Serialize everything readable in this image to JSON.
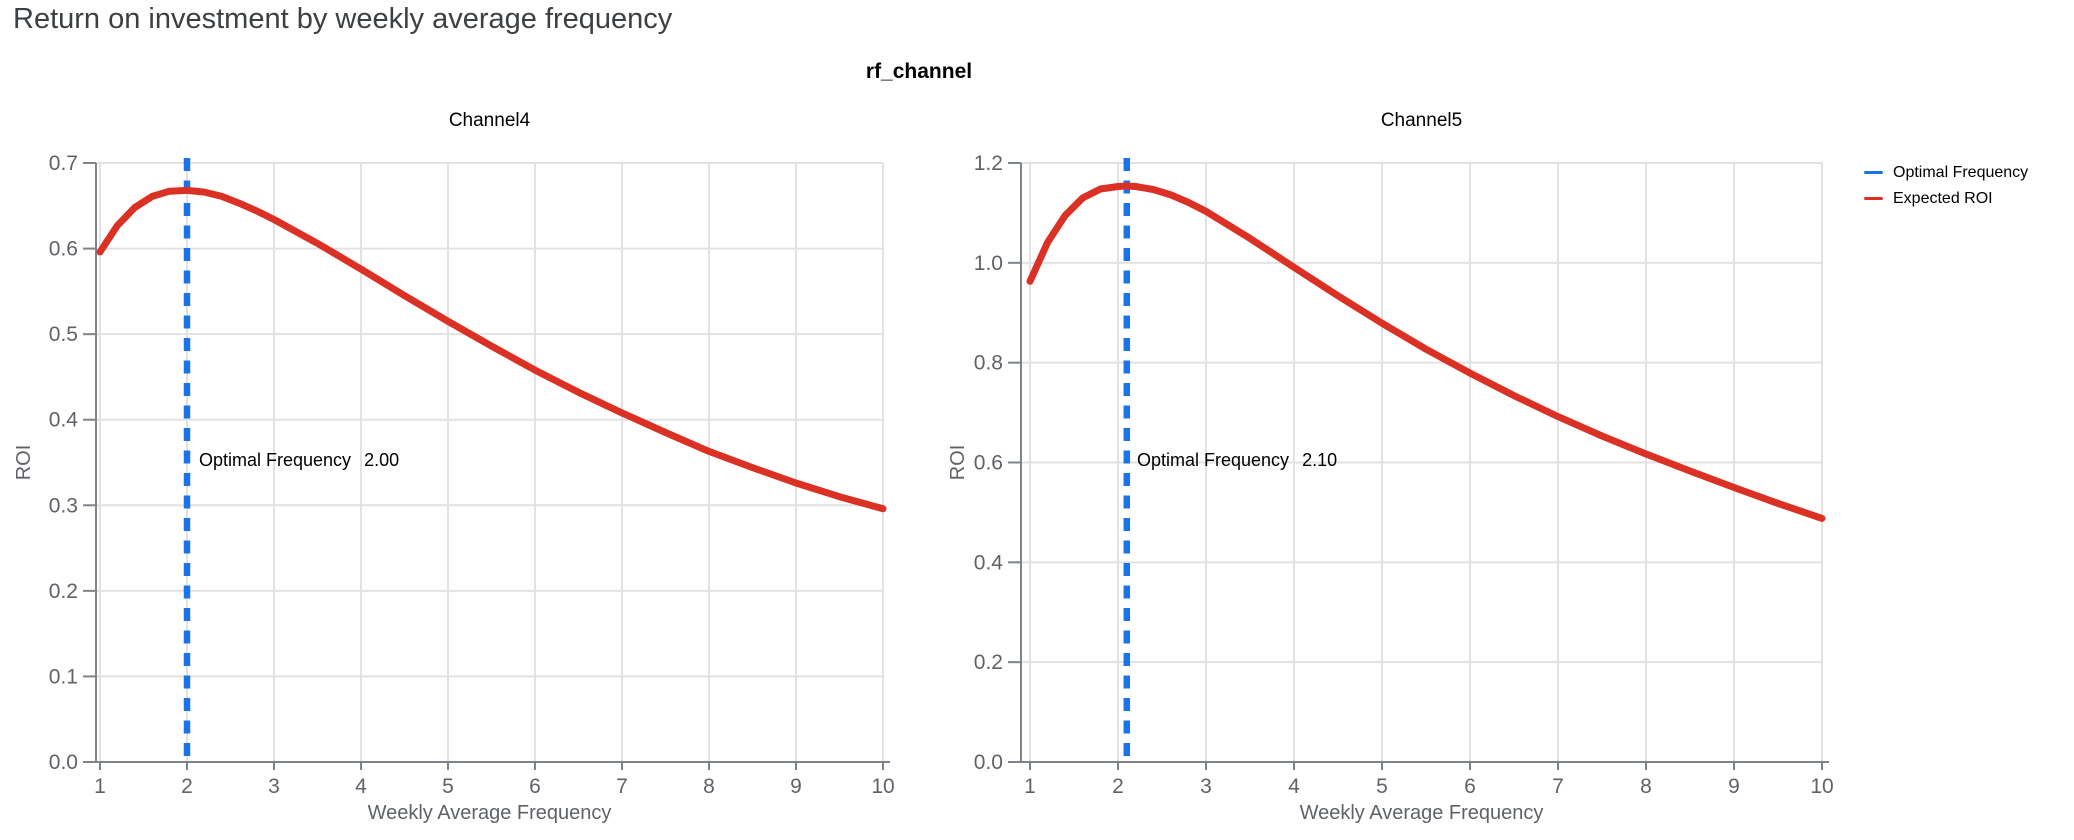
{
  "page": {
    "title": "Return on investment by weekly average frequency"
  },
  "facet": {
    "strip_title": "rf_channel"
  },
  "legend": {
    "items": [
      {
        "label": "Optimal Frequency",
        "color": "#1a73e8"
      },
      {
        "label": "Expected ROI",
        "color": "#db3125"
      }
    ]
  },
  "colors": {
    "roi_curve": "#db3125",
    "optimal_rule": "#1a73e8",
    "grid": "#e2e2e2",
    "axis": "#7e848a",
    "tick_label": "#5f6368",
    "axis_title": "#5f6368",
    "facet_label": "#000000",
    "annotation": "#000000",
    "page_title": "#3c4043"
  },
  "chart_data": [
    {
      "type": "line",
      "title": "Channel4",
      "xlabel": "Weekly Average Frequency",
      "ylabel": "ROI",
      "xlim": [
        1,
        10
      ],
      "ylim": [
        0,
        0.7
      ],
      "xticks": [
        1,
        2,
        3,
        4,
        5,
        6,
        7,
        8,
        9,
        10
      ],
      "yticks": [
        0,
        0.1,
        0.2,
        0.3,
        0.4,
        0.5,
        0.6,
        0.7
      ],
      "grid": true,
      "legend_position": "top-right",
      "optimal_frequency": 2.0,
      "annotation": {
        "label": "Optimal Frequency",
        "value": "2.00"
      },
      "series": [
        {
          "name": "Expected ROI",
          "x": [
            1,
            1.2,
            1.4,
            1.6,
            1.8,
            2,
            2.2,
            2.4,
            2.6,
            2.8,
            3,
            3.5,
            4,
            4.5,
            5,
            5.5,
            6,
            6.5,
            7,
            7.5,
            8,
            8.5,
            9,
            9.5,
            10
          ],
          "y": [
            0.596,
            0.627,
            0.648,
            0.661,
            0.667,
            0.668,
            0.666,
            0.661,
            0.653,
            0.644,
            0.634,
            0.606,
            0.576,
            0.545,
            0.515,
            0.486,
            0.458,
            0.432,
            0.408,
            0.385,
            0.363,
            0.344,
            0.326,
            0.31,
            0.296
          ]
        }
      ]
    },
    {
      "type": "line",
      "title": "Channel5",
      "xlabel": "Weekly Average Frequency",
      "ylabel": "ROI",
      "xlim": [
        1,
        10
      ],
      "ylim": [
        0,
        1.2
      ],
      "xticks": [
        1,
        2,
        3,
        4,
        5,
        6,
        7,
        8,
        9,
        10
      ],
      "yticks": [
        0,
        0.2,
        0.4,
        0.6,
        0.8,
        1.0,
        1.2
      ],
      "grid": true,
      "legend_position": "top-right",
      "optimal_frequency": 2.1,
      "annotation": {
        "label": "Optimal Frequency",
        "value": "2.10"
      },
      "series": [
        {
          "name": "Expected ROI",
          "x": [
            1,
            1.2,
            1.4,
            1.6,
            1.8,
            2,
            2.1,
            2.2,
            2.4,
            2.6,
            2.8,
            3,
            3.5,
            4,
            4.5,
            5,
            5.5,
            6,
            6.5,
            7,
            7.5,
            8,
            8.5,
            9,
            9.5,
            10
          ],
          "y": [
            0.963,
            1.041,
            1.095,
            1.13,
            1.148,
            1.153,
            1.154,
            1.153,
            1.147,
            1.136,
            1.121,
            1.103,
            1.049,
            0.991,
            0.934,
            0.879,
            0.827,
            0.779,
            0.734,
            0.692,
            0.653,
            0.617,
            0.583,
            0.55,
            0.518,
            0.488
          ]
        }
      ]
    }
  ]
}
